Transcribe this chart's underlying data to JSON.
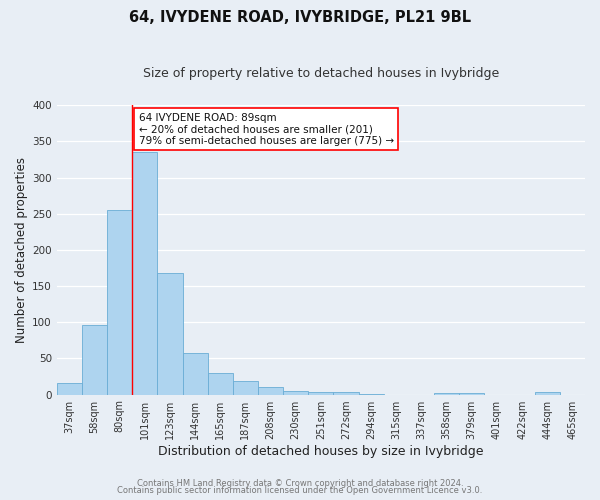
{
  "title": "64, IVYDENE ROAD, IVYBRIDGE, PL21 9BL",
  "subtitle": "Size of property relative to detached houses in Ivybridge",
  "xlabel": "Distribution of detached houses by size in Ivybridge",
  "ylabel": "Number of detached properties",
  "bar_labels": [
    "37sqm",
    "58sqm",
    "80sqm",
    "101sqm",
    "123sqm",
    "144sqm",
    "165sqm",
    "187sqm",
    "208sqm",
    "230sqm",
    "251sqm",
    "272sqm",
    "294sqm",
    "315sqm",
    "337sqm",
    "358sqm",
    "379sqm",
    "401sqm",
    "422sqm",
    "444sqm",
    "465sqm"
  ],
  "bar_values": [
    16,
    96,
    255,
    335,
    168,
    58,
    30,
    19,
    11,
    5,
    4,
    3,
    1,
    0,
    0,
    2,
    2,
    0,
    0,
    3,
    0
  ],
  "bar_color": "#aed4ef",
  "bar_edgecolor": "#6aadd5",
  "ylim": [
    0,
    400
  ],
  "yticks": [
    0,
    50,
    100,
    150,
    200,
    250,
    300,
    350,
    400
  ],
  "annotation_line1": "64 IVYDENE ROAD: 89sqm",
  "annotation_line2": "← 20% of detached houses are smaller (201)",
  "annotation_line3": "79% of semi-detached houses are larger (775) →",
  "footer_line1": "Contains HM Land Registry data © Crown copyright and database right 2024.",
  "footer_line2": "Contains public sector information licensed under the Open Government Licence v3.0.",
  "background_color": "#e8eef5",
  "grid_color": "#ffffff",
  "title_fontsize": 10.5,
  "subtitle_fontsize": 9,
  "axis_label_fontsize": 8.5,
  "tick_fontsize": 7,
  "footer_fontsize": 6,
  "annotation_fontsize": 7.5,
  "vline_x": 2.5
}
